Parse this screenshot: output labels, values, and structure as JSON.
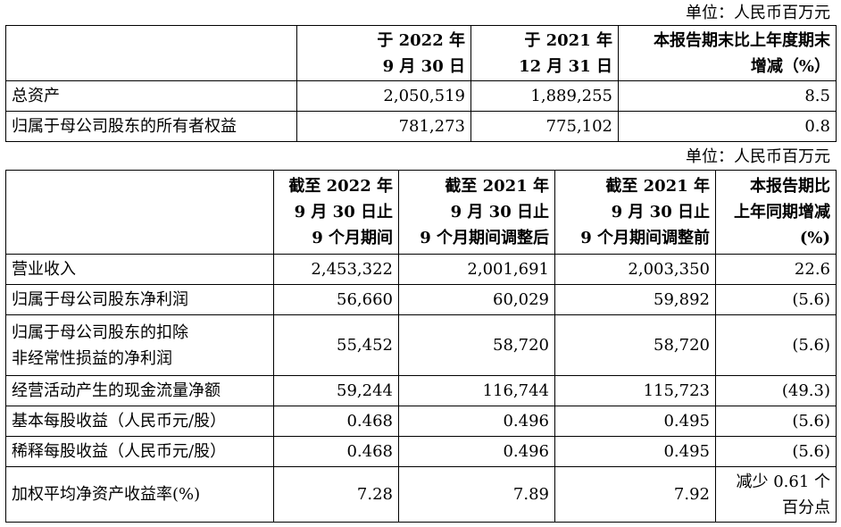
{
  "table1": {
    "unit": "单位：人民币百万元",
    "headers": [
      "",
      [
        "于 2022 年",
        "9 月 30 日"
      ],
      [
        "于 2021 年",
        "12 月 31 日"
      ],
      [
        "本报告期末比上年度期末",
        "增减（%）"
      ]
    ],
    "rows": [
      {
        "label": "总资产",
        "c1": "2,050,519",
        "c2": "1,889,255",
        "c3": "8.5"
      },
      {
        "label": "归属于母公司股东的所有者权益",
        "c1": "781,273",
        "c2": "775,102",
        "c3": "0.8"
      }
    ]
  },
  "table2": {
    "unit": "单位：人民币百万元",
    "headers": [
      "",
      [
        "截至 2022 年",
        "9 月 30 日止",
        "9 个月期间"
      ],
      [
        "截至 2021 年",
        "9 月 30 日止",
        "9 个月期间调整后"
      ],
      [
        "截至 2021 年",
        "9 月 30 日止",
        "9 个月期间调整前"
      ],
      [
        "本报告期比",
        "上年同期增减",
        "(%)"
      ]
    ],
    "rows": [
      {
        "label": [
          "营业收入"
        ],
        "c1": "2,453,322",
        "c2": "2,001,691",
        "c3": "2,003,350",
        "c4": [
          "22.6"
        ]
      },
      {
        "label": [
          "归属于母公司股东净利润"
        ],
        "c1": "56,660",
        "c2": "60,029",
        "c3": "59,892",
        "c4": [
          "(5.6)"
        ]
      },
      {
        "label": [
          "归属于母公司股东的扣除",
          "非经常性损益的净利润"
        ],
        "c1": "55,452",
        "c2": "58,720",
        "c3": "58,720",
        "c4": [
          "(5.6)"
        ]
      },
      {
        "label": [
          "经营活动产生的现金流量净额"
        ],
        "c1": "59,244",
        "c2": "116,744",
        "c3": "115,723",
        "c4": [
          "(49.3)"
        ]
      },
      {
        "label": [
          "基本每股收益（人民币元/股）"
        ],
        "c1": "0.468",
        "c2": "0.496",
        "c3": "0.495",
        "c4": [
          "(5.6)"
        ]
      },
      {
        "label": [
          "稀释每股收益（人民币元/股）"
        ],
        "c1": "0.468",
        "c2": "0.496",
        "c3": "0.495",
        "c4": [
          "(5.6)"
        ]
      },
      {
        "label": [
          "加权平均净资产收益率(%)"
        ],
        "c1": "7.28",
        "c2": "7.89",
        "c3": "7.92",
        "c4": [
          "减少 0.61 个",
          "百分点"
        ]
      }
    ]
  }
}
